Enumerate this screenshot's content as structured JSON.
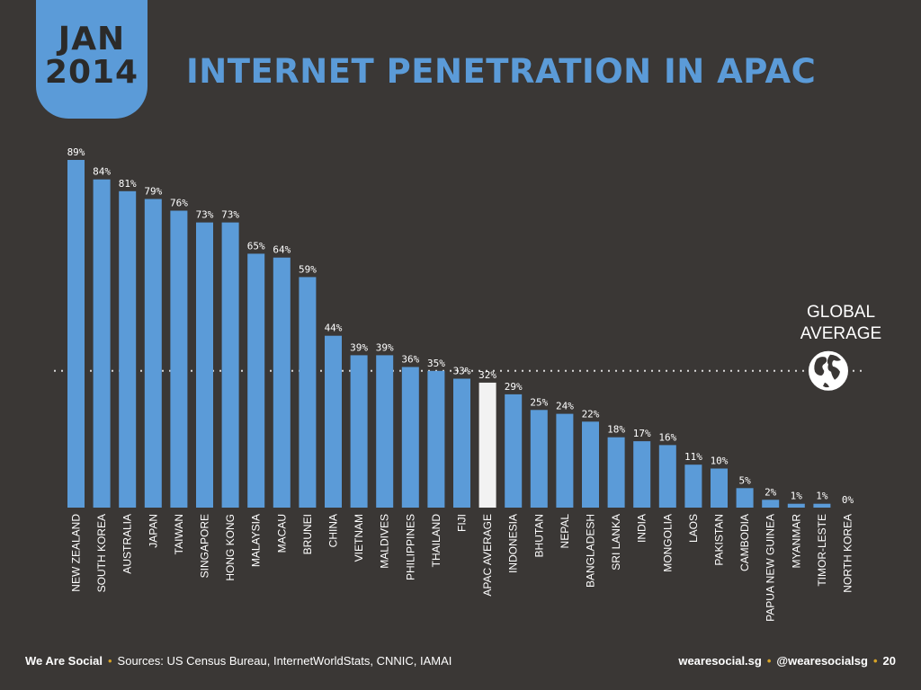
{
  "header": {
    "month": "JAN",
    "year": "2014",
    "title": "INTERNET PENETRATION IN APAC"
  },
  "global_average": {
    "line1": "GLOBAL",
    "line2": "AVERAGE",
    "icon": "globe-icon"
  },
  "footer": {
    "brand": "We Are Social",
    "sources": "Sources: US Census Bureau, InternetWorldStats, CNNIC, IAMAI",
    "site": "wearesocial.sg",
    "handle": "@wearesocialsg",
    "page": "20"
  },
  "colors": {
    "background": "#3a3735",
    "bar": "#5b9bd8",
    "highlight_bar": "#f2f2f2",
    "accent_dot": "#d7a326"
  },
  "chart_data": {
    "type": "bar",
    "title": "INTERNET PENETRATION IN APAC",
    "xlabel": "",
    "ylabel": "",
    "ylim": [
      0,
      100
    ],
    "grid": false,
    "categories": [
      "NEW ZEALAND",
      "SOUTH KOREA",
      "AUSTRALIA",
      "JAPAN",
      "TAIWAN",
      "SINGAPORE",
      "HONG KONG",
      "MALAYSIA",
      "MACAU",
      "BRUNEI",
      "CHINA",
      "VIETNAM",
      "MALDIVES",
      "PHILIPPINES",
      "THAILAND",
      "FIJI",
      "APAC AVERAGE",
      "INDONESIA",
      "BHUTAN",
      "NEPAL",
      "BANGLADESH",
      "SRI LANKA",
      "INDIA",
      "MONGOLIA",
      "LAOS",
      "PAKISTAN",
      "CAMBODIA",
      "PAPUA NEW GUINEA",
      "MYANMAR",
      "TIMOR-LESTE",
      "NORTH KOREA"
    ],
    "values": [
      89,
      84,
      81,
      79,
      76,
      73,
      73,
      65,
      64,
      59,
      44,
      39,
      39,
      36,
      35,
      33,
      32,
      29,
      25,
      24,
      22,
      18,
      17,
      16,
      11,
      10,
      5,
      2,
      1,
      1,
      0
    ],
    "value_labels": [
      "89%",
      "84%",
      "81%",
      "79%",
      "76%",
      "73%",
      "73%",
      "65%",
      "64%",
      "59%",
      "44%",
      "39%",
      "39%",
      "36%",
      "35%",
      "33%",
      "32%",
      "29%",
      "25%",
      "24%",
      "22%",
      "18%",
      "17%",
      "16%",
      "11%",
      "10%",
      "5%",
      "2%",
      "1%",
      "1%",
      "0%"
    ],
    "highlight": "APAC AVERAGE",
    "reference_line": {
      "label": "GLOBAL AVERAGE",
      "value": 35
    }
  }
}
